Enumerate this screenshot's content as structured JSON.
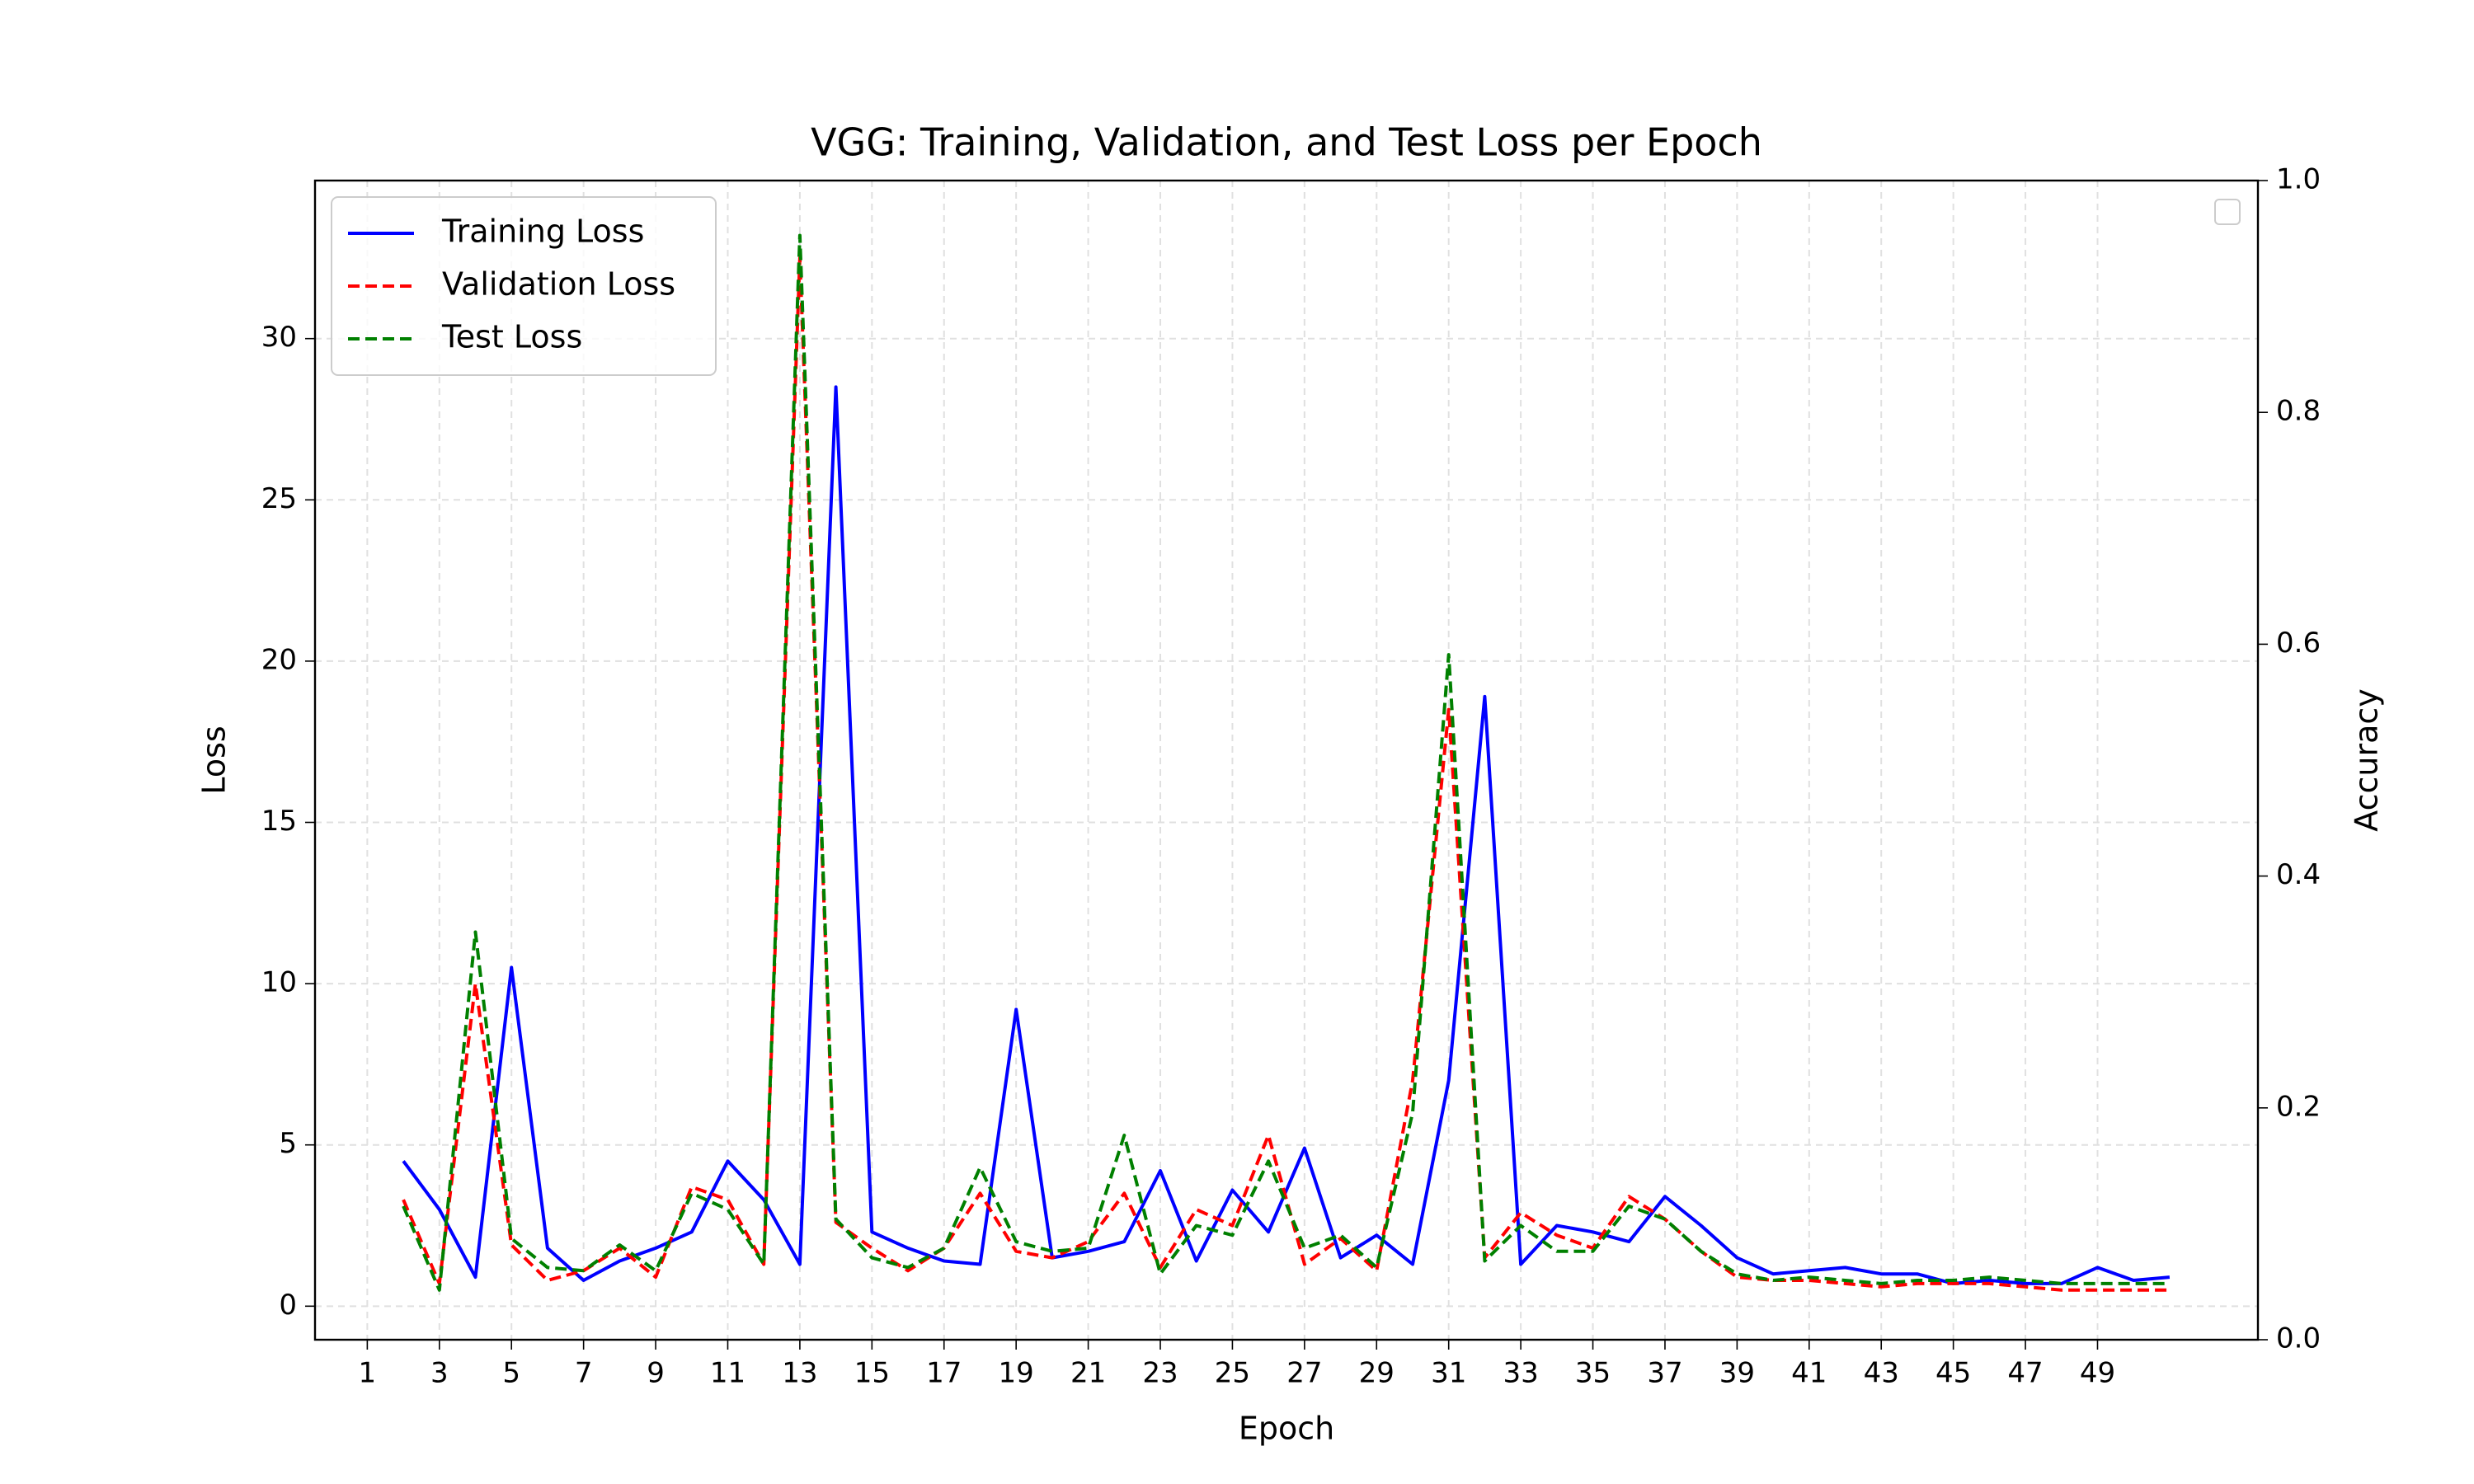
{
  "chart_data": {
    "type": "line",
    "title": "VGG: Training, Validation, and Test Loss per Epoch",
    "xlabel": "Epoch",
    "ylabel": "Loss",
    "y2label": "Accuracy",
    "x": [
      2,
      3,
      4,
      5,
      6,
      7,
      8,
      9,
      10,
      11,
      12,
      13,
      14,
      15,
      16,
      17,
      18,
      19,
      20,
      21,
      22,
      23,
      24,
      25,
      26,
      27,
      28,
      29,
      30,
      31,
      32,
      33,
      34,
      35,
      36,
      37,
      38,
      39,
      40,
      41,
      42,
      43,
      44,
      45,
      46,
      47,
      48,
      49,
      50,
      51
    ],
    "series": [
      {
        "name": "Training Loss",
        "color": "#0000ff",
        "linestyle": "solid",
        "values": [
          4.5,
          3.0,
          0.9,
          10.5,
          1.8,
          0.8,
          1.4,
          1.8,
          2.3,
          4.5,
          3.3,
          1.3,
          28.5,
          2.3,
          1.8,
          1.4,
          1.3,
          9.2,
          1.5,
          1.7,
          2.0,
          4.2,
          1.4,
          3.6,
          2.3,
          4.9,
          1.5,
          2.2,
          1.3,
          7.0,
          18.9,
          1.3,
          2.5,
          2.3,
          2.0,
          3.4,
          2.5,
          1.5,
          1.0,
          1.1,
          1.2,
          1.0,
          1.0,
          0.7,
          0.8,
          0.7,
          0.7,
          1.2,
          0.8,
          0.9
        ]
      },
      {
        "name": "Validation Loss",
        "color": "#ff0000",
        "linestyle": "dashed",
        "values": [
          3.3,
          0.7,
          10.0,
          1.9,
          0.8,
          1.1,
          1.8,
          0.9,
          3.7,
          3.3,
          1.3,
          32.5,
          2.6,
          1.8,
          1.1,
          1.8,
          3.5,
          1.7,
          1.5,
          2.0,
          3.5,
          1.2,
          3.0,
          2.5,
          5.3,
          1.3,
          2.1,
          1.1,
          7.0,
          18.5,
          1.5,
          2.9,
          2.2,
          1.8,
          3.4,
          2.7,
          1.7,
          0.9,
          0.8,
          0.8,
          0.7,
          0.6,
          0.7,
          0.7,
          0.7,
          0.6,
          0.5,
          0.5,
          0.5,
          0.5
        ]
      },
      {
        "name": "Test Loss",
        "color": "#008000",
        "linestyle": "dashed",
        "values": [
          3.1,
          0.5,
          11.6,
          2.1,
          1.2,
          1.1,
          1.9,
          1.1,
          3.5,
          3.0,
          1.3,
          33.2,
          2.7,
          1.5,
          1.2,
          1.8,
          4.3,
          2.0,
          1.7,
          1.8,
          5.3,
          1.0,
          2.5,
          2.2,
          4.5,
          1.8,
          2.2,
          1.2,
          6.0,
          20.2,
          1.4,
          2.5,
          1.7,
          1.7,
          3.1,
          2.7,
          1.7,
          1.0,
          0.8,
          0.9,
          0.8,
          0.7,
          0.8,
          0.8,
          0.9,
          0.8,
          0.7,
          0.7,
          0.7,
          0.7
        ]
      }
    ],
    "xlim": [
      -0.45,
      53.45
    ],
    "xticks": [
      1,
      3,
      5,
      7,
      9,
      11,
      13,
      15,
      17,
      19,
      21,
      23,
      25,
      27,
      29,
      31,
      33,
      35,
      37,
      39,
      41,
      43,
      45,
      47,
      49
    ],
    "ylim": [
      -1.04,
      34.9
    ],
    "yticks": [
      0,
      5,
      10,
      15,
      20,
      25,
      30
    ],
    "y2lim": [
      0,
      1
    ],
    "y2ticks": [
      {
        "value": 0,
        "label": "0.0"
      },
      0.2,
      0.4,
      0.6,
      0.8,
      {
        "value": 1,
        "label": "1.0"
      }
    ],
    "grid": true,
    "legend": "upper left"
  }
}
